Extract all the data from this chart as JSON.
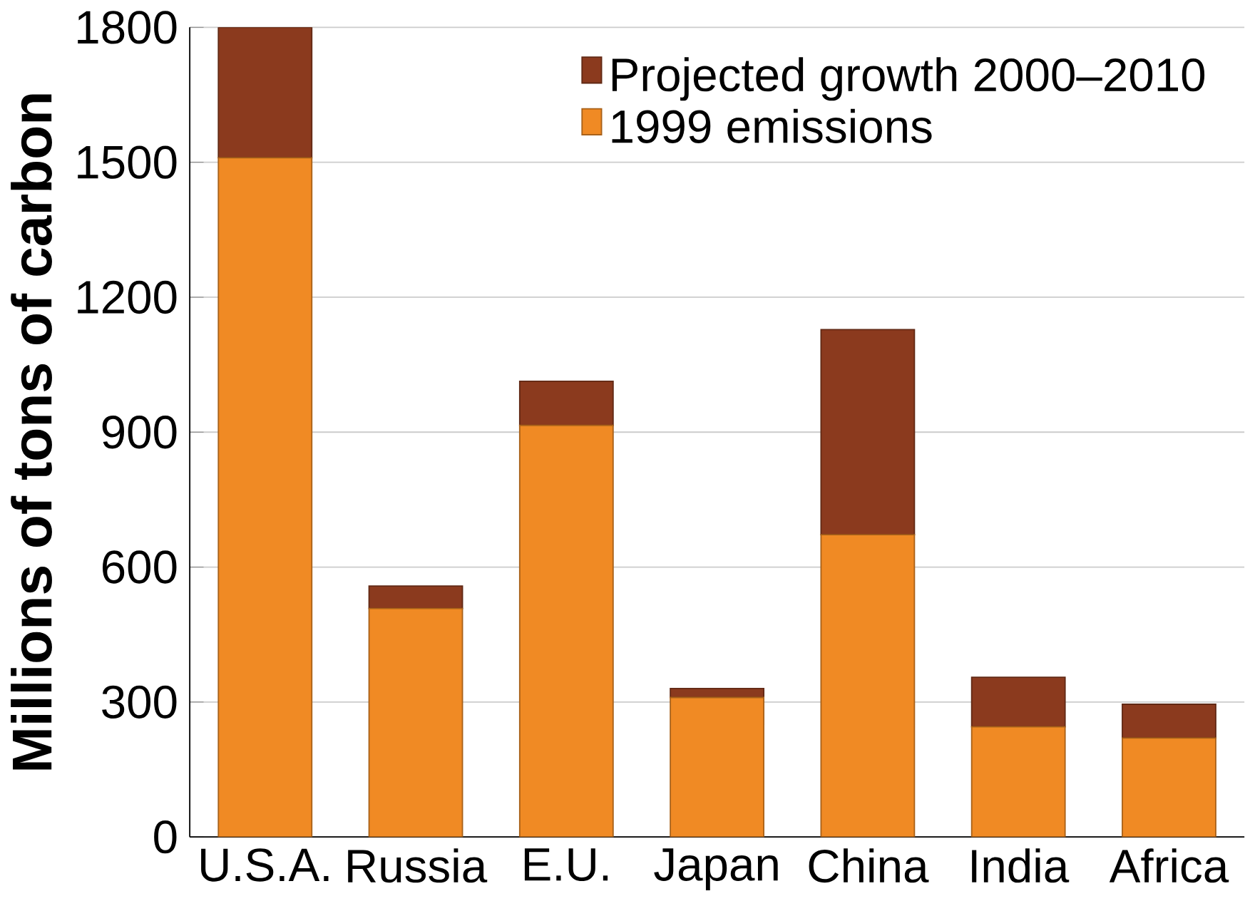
{
  "chart_data": {
    "type": "bar",
    "stacked": true,
    "ylabel": "Millions of tons of carbon",
    "categories": [
      "U.S.A.",
      "Russia",
      "E.U.",
      "Japan",
      "China",
      "India",
      "Africa"
    ],
    "series": [
      {
        "name": "1999 emissions",
        "color": "#f08a24",
        "values": [
          1510,
          508,
          915,
          310,
          672,
          245,
          220
        ]
      },
      {
        "name": "Projected growth 2000–2010",
        "color": "#8b3a1e",
        "values": [
          290,
          50,
          98,
          20,
          456,
          110,
          75
        ]
      }
    ],
    "ylim": [
      0,
      1800
    ],
    "yticks": [
      0,
      300,
      600,
      900,
      1200,
      1500,
      1800
    ],
    "grid": "y",
    "legend": "top right"
  }
}
